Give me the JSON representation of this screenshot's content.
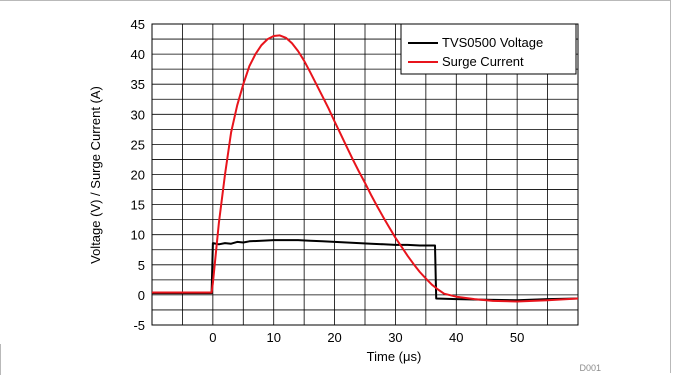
{
  "chart_data": {
    "type": "line",
    "title": "",
    "xlabel": "Time (μs)",
    "ylabel": "Voltage (V) / Surge Current (A)",
    "xlim": [
      -10,
      60
    ],
    "ylim": [
      -5,
      45
    ],
    "x_ticks": [
      0,
      10,
      20,
      30,
      40,
      50
    ],
    "y_ticks": [
      -5,
      0,
      5,
      10,
      15,
      20,
      25,
      30,
      35,
      40,
      45
    ],
    "grid": true,
    "legend_position": "top-right",
    "series": [
      {
        "name": "TVS0500 Voltage",
        "color": "#000000",
        "points": [
          [
            -10,
            0.3
          ],
          [
            -0.2,
            0.3
          ],
          [
            0.0,
            8.6
          ],
          [
            1,
            8.4
          ],
          [
            2,
            8.6
          ],
          [
            3,
            8.5
          ],
          [
            4,
            8.8
          ],
          [
            5,
            8.7
          ],
          [
            6,
            8.9
          ],
          [
            8,
            9.0
          ],
          [
            10,
            9.1
          ],
          [
            12,
            9.1
          ],
          [
            14,
            9.1
          ],
          [
            16,
            9.0
          ],
          [
            18,
            8.9
          ],
          [
            20,
            8.8
          ],
          [
            22,
            8.7
          ],
          [
            24,
            8.6
          ],
          [
            26,
            8.5
          ],
          [
            28,
            8.4
          ],
          [
            30,
            8.3
          ],
          [
            32,
            8.3
          ],
          [
            34,
            8.2
          ],
          [
            36.5,
            8.2
          ],
          [
            36.7,
            -0.6
          ],
          [
            40,
            -0.7
          ],
          [
            45,
            -0.8
          ],
          [
            50,
            -0.9
          ],
          [
            55,
            -0.7
          ],
          [
            60,
            -0.6
          ]
        ]
      },
      {
        "name": "Surge Current",
        "color": "#e8141c",
        "points": [
          [
            -10,
            0.4
          ],
          [
            -0.2,
            0.4
          ],
          [
            0.0,
            2.0
          ],
          [
            1,
            12.0
          ],
          [
            2,
            20.0
          ],
          [
            3,
            27.0
          ],
          [
            4,
            31.5
          ],
          [
            5,
            35.0
          ],
          [
            6,
            38.0
          ],
          [
            7,
            40.0
          ],
          [
            8,
            41.5
          ],
          [
            9,
            42.5
          ],
          [
            10,
            43.0
          ],
          [
            11,
            43.1
          ],
          [
            12,
            42.7
          ],
          [
            13,
            41.8
          ],
          [
            14,
            40.5
          ],
          [
            15,
            38.9
          ],
          [
            16,
            37.0
          ],
          [
            17,
            35.0
          ],
          [
            18,
            33.0
          ],
          [
            19,
            31.0
          ],
          [
            20,
            28.8
          ],
          [
            21,
            26.7
          ],
          [
            22,
            24.6
          ],
          [
            23,
            22.5
          ],
          [
            24,
            20.5
          ],
          [
            25,
            18.6
          ],
          [
            26,
            16.6
          ],
          [
            27,
            14.7
          ],
          [
            28,
            12.9
          ],
          [
            29,
            11.2
          ],
          [
            30,
            9.5
          ],
          [
            31,
            8.0
          ],
          [
            32,
            6.5
          ],
          [
            33,
            5.1
          ],
          [
            34,
            3.8
          ],
          [
            35,
            2.7
          ],
          [
            36,
            1.7
          ],
          [
            37,
            0.9
          ],
          [
            38,
            0.2
          ],
          [
            40,
            -0.3
          ],
          [
            43,
            -0.7
          ],
          [
            46,
            -1.0
          ],
          [
            50,
            -1.1
          ],
          [
            55,
            -0.9
          ],
          [
            60,
            -0.6
          ]
        ]
      }
    ]
  },
  "footer_code": "D001"
}
